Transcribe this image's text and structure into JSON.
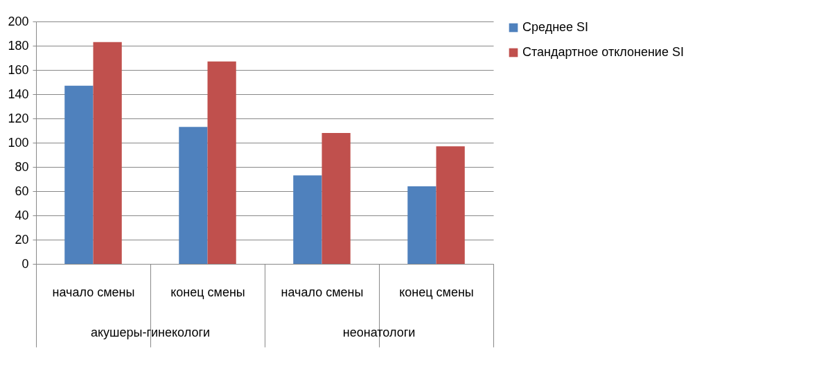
{
  "chart_data": {
    "type": "bar",
    "categories": [
      "начало смены",
      "конец смены",
      "начало смены",
      "конец смены"
    ],
    "series": [
      {
        "name": "Среднее SI",
        "color": "#4f81bd",
        "values": [
          147,
          113,
          73,
          64
        ]
      },
      {
        "name": "Стандартное отклонение SI",
        "color": "#c0504d",
        "values": [
          183,
          167,
          108,
          97
        ]
      }
    ],
    "annotations": [
      "акушеры-гинекологи",
      "неонатологи"
    ],
    "ylim": [
      0,
      200
    ],
    "yticks": [
      0,
      20,
      40,
      60,
      80,
      100,
      120,
      140,
      160,
      180,
      200
    ],
    "grid": "y",
    "legend": "right"
  }
}
